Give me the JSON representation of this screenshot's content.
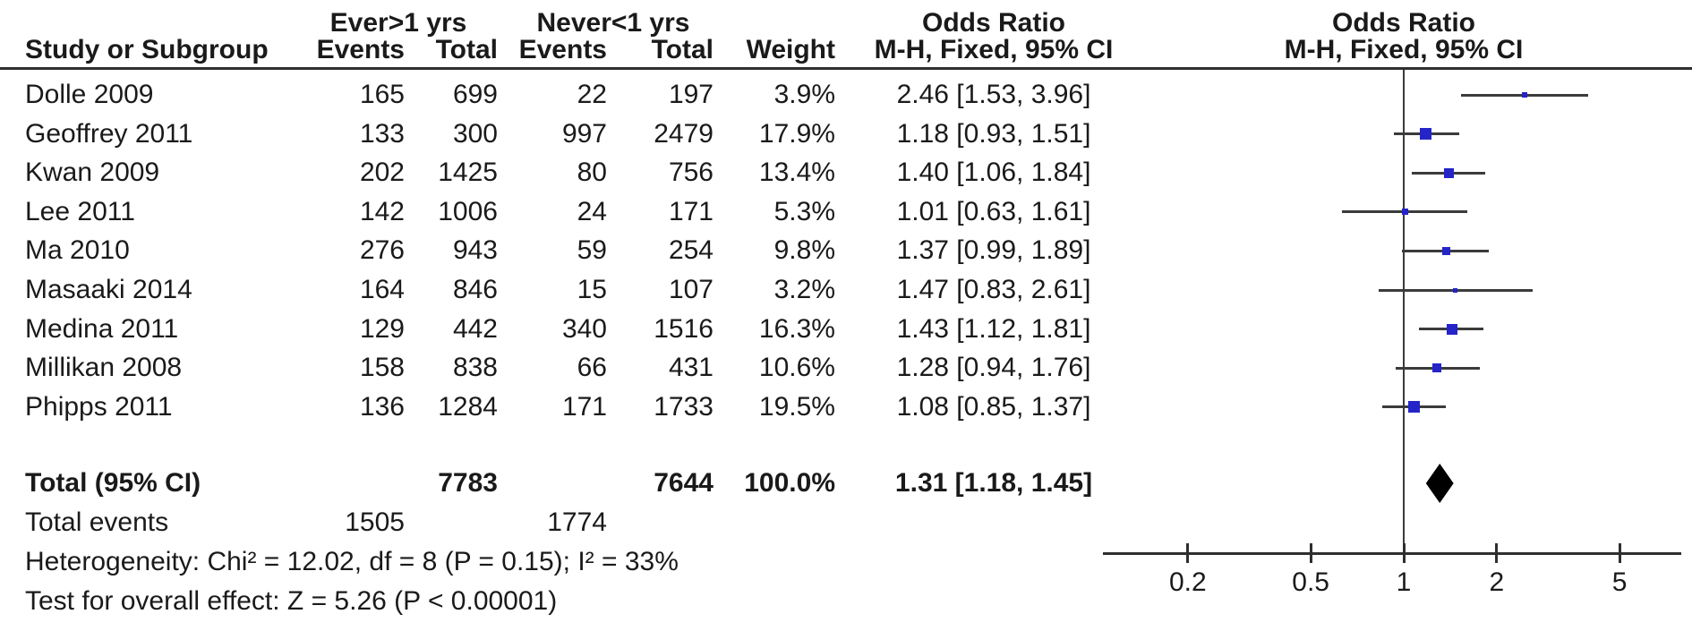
{
  "figure": {
    "group_headers": {
      "exposed": "Ever>1 yrs",
      "control": "Never<1 yrs",
      "or_text_col": "Odds Ratio",
      "or_plot_col": "Odds Ratio"
    },
    "column_headers": {
      "study": "Study or Subgroup",
      "events_exposed": "Events",
      "total_exposed": "Total",
      "events_control": "Events",
      "total_control": "Total",
      "weight": "Weight",
      "mh_text": "M-H, Fixed, 95% CI",
      "mh_plot": "M-H, Fixed, 95% CI"
    },
    "rows": [
      {
        "study": "Dolle 2009",
        "events1": "165",
        "total1": "699",
        "events2": "22",
        "total2": "197",
        "weight": "3.9%",
        "or_ci": "2.46 [1.53, 3.96]"
      },
      {
        "study": "Geoffrey 2011",
        "events1": "133",
        "total1": "300",
        "events2": "997",
        "total2": "2479",
        "weight": "17.9%",
        "or_ci": "1.18 [0.93, 1.51]"
      },
      {
        "study": "Kwan 2009",
        "events1": "202",
        "total1": "1425",
        "events2": "80",
        "total2": "756",
        "weight": "13.4%",
        "or_ci": "1.40 [1.06, 1.84]"
      },
      {
        "study": "Lee 2011",
        "events1": "142",
        "total1": "1006",
        "events2": "24",
        "total2": "171",
        "weight": "5.3%",
        "or_ci": "1.01 [0.63, 1.61]"
      },
      {
        "study": "Ma 2010",
        "events1": "276",
        "total1": "943",
        "events2": "59",
        "total2": "254",
        "weight": "9.8%",
        "or_ci": "1.37 [0.99, 1.89]"
      },
      {
        "study": "Masaaki 2014",
        "events1": "164",
        "total1": "846",
        "events2": "15",
        "total2": "107",
        "weight": "3.2%",
        "or_ci": "1.47 [0.83, 2.61]"
      },
      {
        "study": "Medina 2011",
        "events1": "129",
        "total1": "442",
        "events2": "340",
        "total2": "1516",
        "weight": "16.3%",
        "or_ci": "1.43 [1.12, 1.81]"
      },
      {
        "study": "Millikan 2008",
        "events1": "158",
        "total1": "838",
        "events2": "66",
        "total2": "431",
        "weight": "10.6%",
        "or_ci": "1.28 [0.94, 1.76]"
      },
      {
        "study": "Phipps 2011",
        "events1": "136",
        "total1": "1284",
        "events2": "171",
        "total2": "1733",
        "weight": "19.5%",
        "or_ci": "1.08 [0.85, 1.37]"
      }
    ],
    "totals": {
      "label": "Total (95% CI)",
      "total1": "7783",
      "total2": "7644",
      "weight": "100.0%",
      "or_ci": "1.31 [1.18, 1.45]"
    },
    "total_events": {
      "label": "Total events",
      "events1": "1505",
      "events2": "1774"
    },
    "heterogeneity": "Heterogeneity: Chi² = 12.02, df = 8 (P = 0.15); I² = 33%",
    "overall_effect": "Test for overall effect: Z = 5.26 (P < 0.00001)"
  },
  "chart_data": {
    "type": "forest",
    "scale": "log10",
    "effect_measure": "Odds Ratio, M-H, Fixed, 95% CI",
    "null_line": 1,
    "x_ticks": [
      0.2,
      0.5,
      1,
      2,
      5
    ],
    "x_range": [
      0.106,
      8.0
    ],
    "studies": [
      {
        "name": "Dolle 2009",
        "or": 2.46,
        "ci_low": 1.53,
        "ci_high": 3.96,
        "weight_pct": 3.9
      },
      {
        "name": "Geoffrey 2011",
        "or": 1.18,
        "ci_low": 0.93,
        "ci_high": 1.51,
        "weight_pct": 17.9
      },
      {
        "name": "Kwan 2009",
        "or": 1.4,
        "ci_low": 1.06,
        "ci_high": 1.84,
        "weight_pct": 13.4
      },
      {
        "name": "Lee 2011",
        "or": 1.01,
        "ci_low": 0.63,
        "ci_high": 1.61,
        "weight_pct": 5.3
      },
      {
        "name": "Ma 2010",
        "or": 1.37,
        "ci_low": 0.99,
        "ci_high": 1.89,
        "weight_pct": 9.8
      },
      {
        "name": "Masaaki 2014",
        "or": 1.47,
        "ci_low": 0.83,
        "ci_high": 2.61,
        "weight_pct": 3.2
      },
      {
        "name": "Medina 2011",
        "or": 1.43,
        "ci_low": 1.12,
        "ci_high": 1.81,
        "weight_pct": 16.3
      },
      {
        "name": "Millikan 2008",
        "or": 1.28,
        "ci_low": 0.94,
        "ci_high": 1.76,
        "weight_pct": 10.6
      },
      {
        "name": "Phipps 2011",
        "or": 1.08,
        "ci_low": 0.85,
        "ci_high": 1.37,
        "weight_pct": 19.5
      }
    ],
    "total": {
      "or": 1.31,
      "ci_low": 1.18,
      "ci_high": 1.45
    },
    "colors": {
      "marker": "#2424c9",
      "diamond": "#000000",
      "line": "#3b3b3b"
    }
  }
}
